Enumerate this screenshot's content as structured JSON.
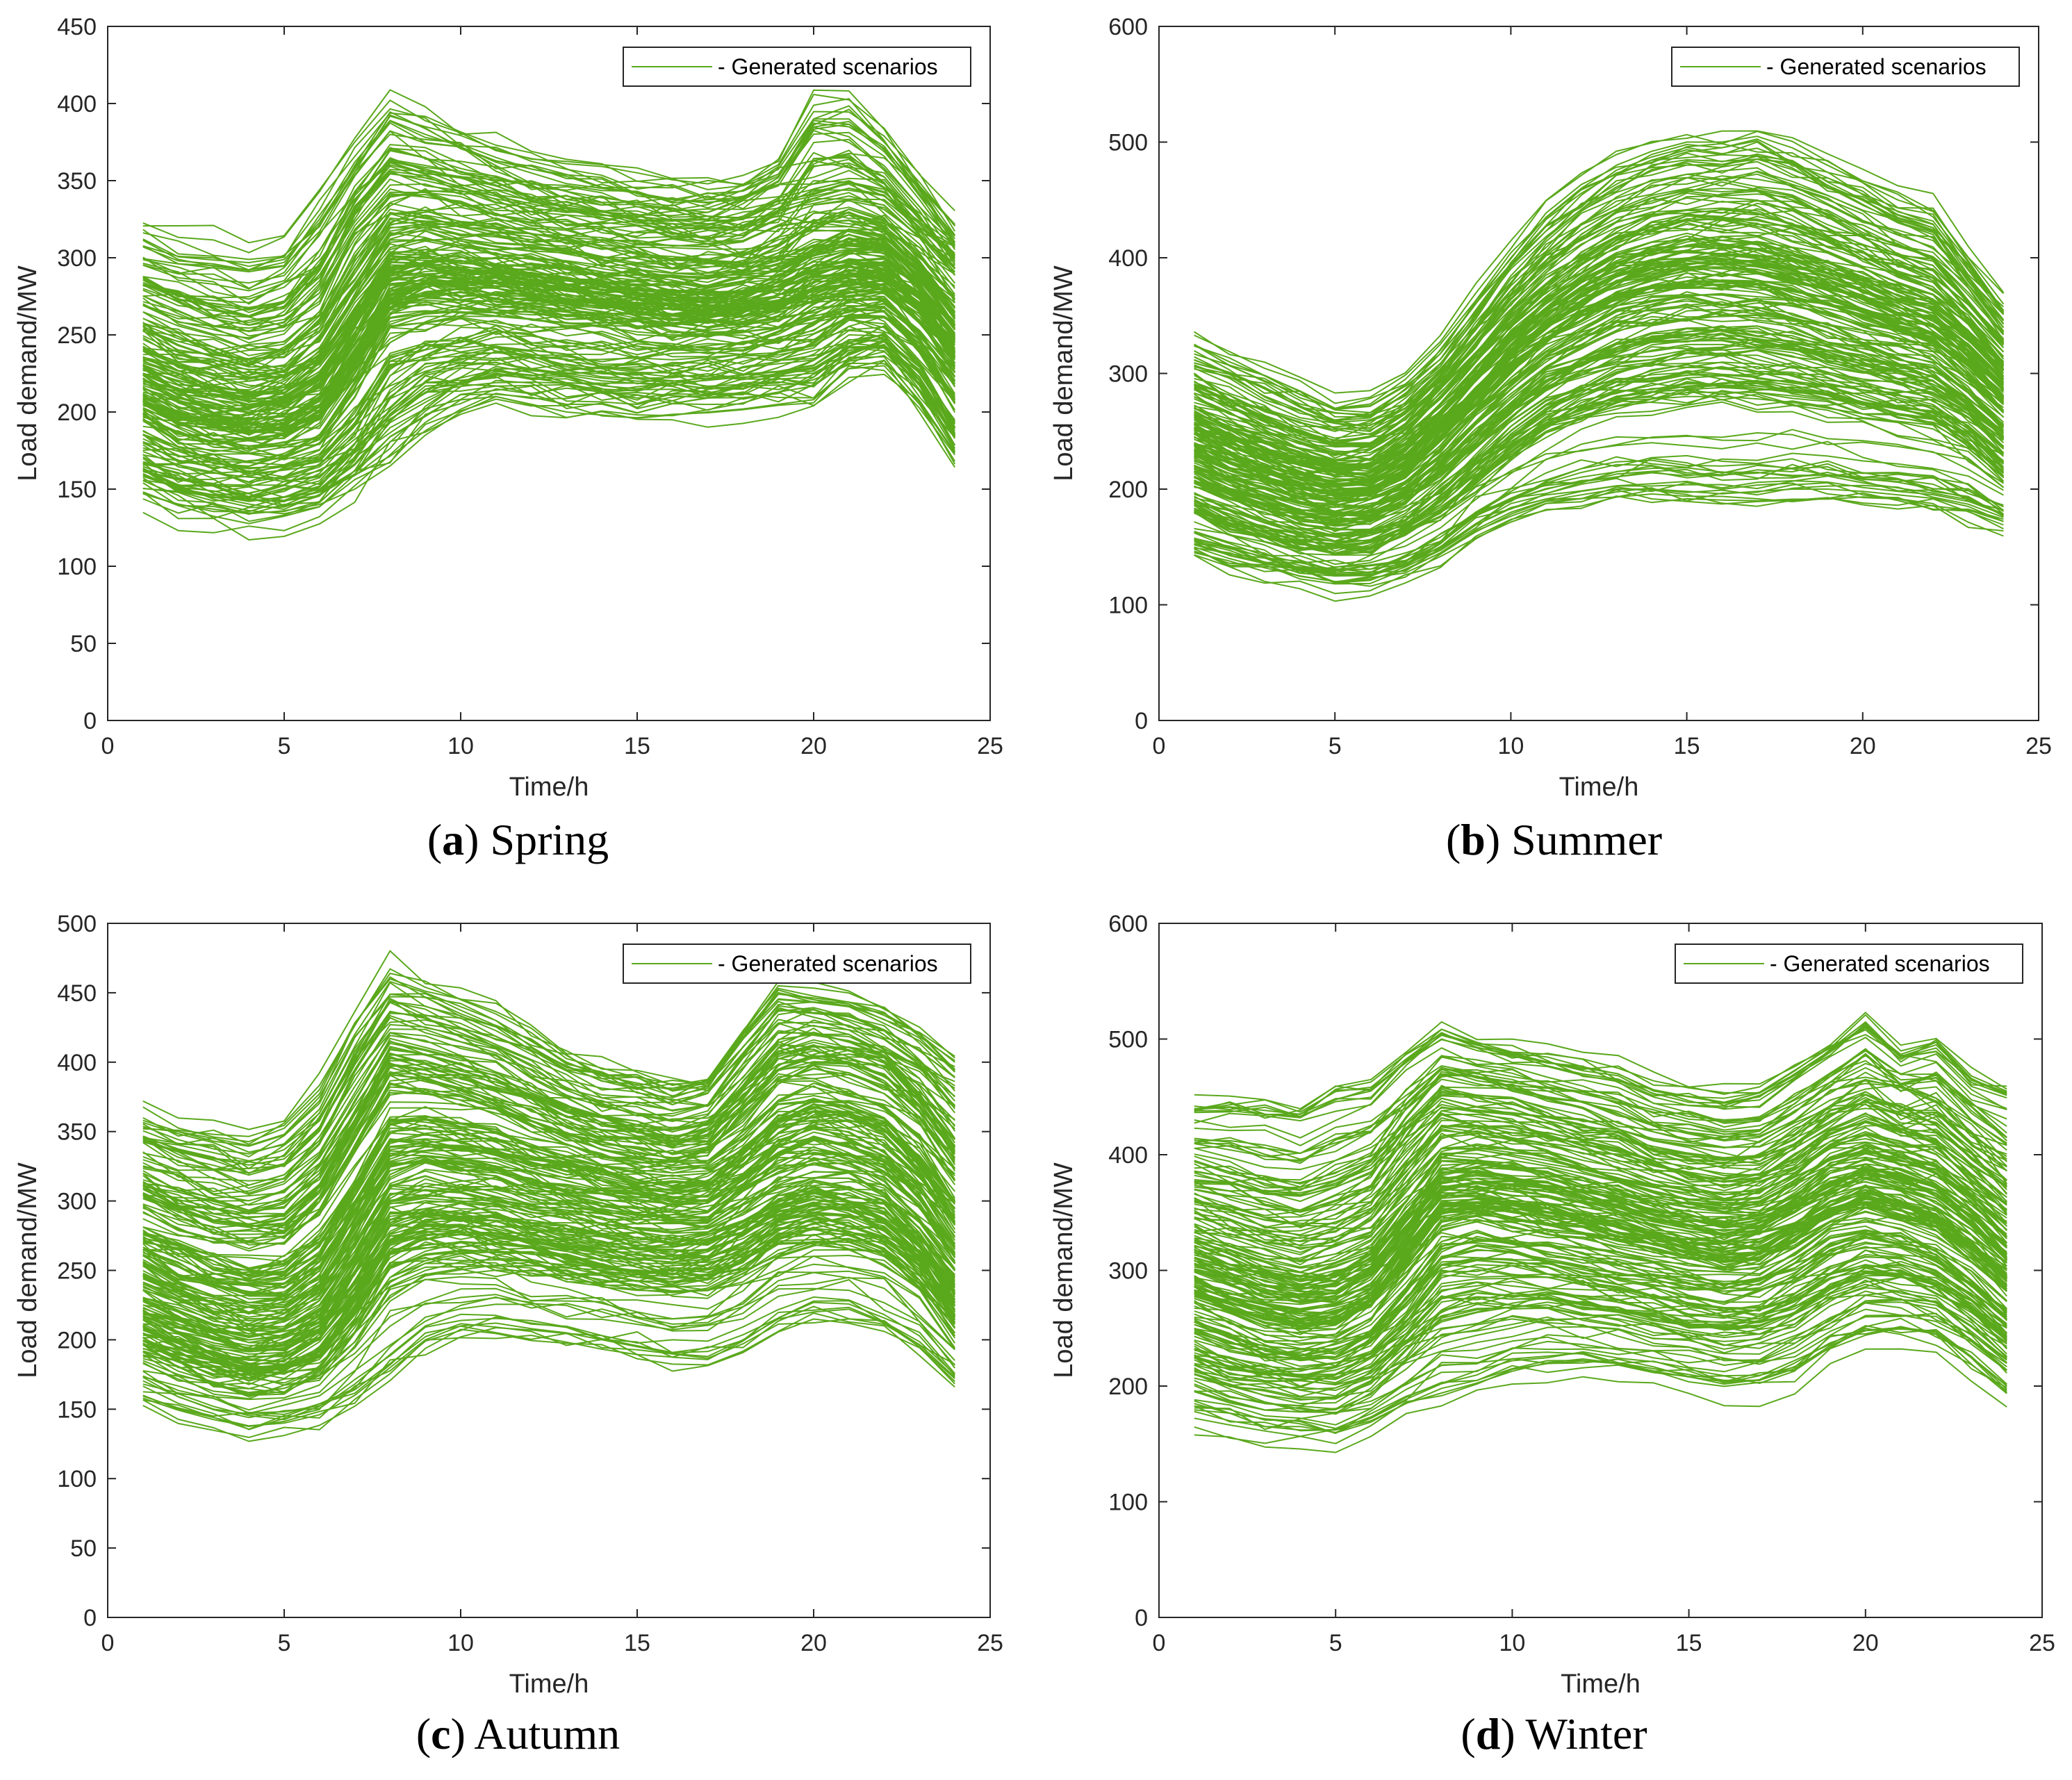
{
  "figure": {
    "line_color": "#5aa81c",
    "panels": [
      {
        "letter": "a",
        "season": "Spring"
      },
      {
        "letter": "b",
        "season": "Summer"
      },
      {
        "letter": "c",
        "season": "Autumn"
      },
      {
        "letter": "d",
        "season": "Winter"
      }
    ]
  },
  "chart_data": [
    {
      "type": "line",
      "xlabel": "Time/h",
      "ylabel": "Load demand/MW",
      "xlim": [
        0,
        25
      ],
      "ylim": [
        0,
        450
      ],
      "xticks": [
        0,
        5,
        10,
        15,
        20,
        25
      ],
      "yticks": [
        0,
        50,
        100,
        150,
        200,
        250,
        300,
        350,
        400,
        450
      ],
      "legend": {
        "label": "- Generated scenarios",
        "position": "top-right"
      },
      "x": [
        1,
        2,
        3,
        4,
        5,
        6,
        7,
        8,
        9,
        10,
        11,
        12,
        13,
        14,
        15,
        16,
        17,
        18,
        19,
        20,
        21,
        22,
        23,
        24
      ],
      "scenario_count": 200,
      "series": [
        {
          "values": [
            208,
            197,
            190,
            188,
            190,
            198,
            230,
            275,
            283,
            283,
            284,
            282,
            280,
            277,
            274,
            270,
            268,
            266,
            268,
            275,
            280,
            282,
            265,
            235
          ]
        },
        {
          "values": [
            307,
            298,
            296,
            292,
            297,
            325,
            362,
            389,
            380,
            372,
            362,
            355,
            348,
            345,
            342,
            338,
            336,
            338,
            352,
            390,
            390,
            370,
            340,
            310
          ]
        },
        {
          "values": [
            147,
            140,
            137,
            134,
            136,
            140,
            150,
            165,
            185,
            200,
            210,
            205,
            200,
            198,
            196,
            198,
            200,
            202,
            205,
            208,
            228,
            230,
            205,
            168
          ]
        },
        {
          "values": [
            280,
            272,
            262,
            258,
            263,
            285,
            330,
            355,
            350,
            345,
            340,
            335,
            330,
            328,
            325,
            322,
            322,
            325,
            335,
            340,
            345,
            340,
            320,
            300
          ]
        },
        {
          "values": [
            160,
            150,
            146,
            142,
            145,
            152,
            175,
            210,
            225,
            230,
            232,
            228,
            225,
            222,
            220,
            220,
            222,
            224,
            226,
            230,
            245,
            250,
            225,
            190
          ]
        },
        {
          "values": [
            240,
            230,
            224,
            222,
            226,
            242,
            275,
            310,
            312,
            308,
            305,
            300,
            298,
            295,
            292,
            290,
            290,
            292,
            298,
            310,
            315,
            310,
            290,
            260
          ]
        },
        {
          "values": [
            185,
            176,
            170,
            168,
            170,
            180,
            210,
            255,
            262,
            262,
            262,
            260,
            258,
            255,
            252,
            250,
            250,
            252,
            255,
            262,
            268,
            270,
            252,
            220
          ]
        },
        {
          "values": [
            225,
            215,
            208,
            205,
            208,
            222,
            255,
            292,
            295,
            292,
            290,
            288,
            285,
            282,
            280,
            278,
            276,
            278,
            285,
            298,
            305,
            300,
            282,
            250
          ]
        }
      ]
    },
    {
      "type": "line",
      "xlabel": "Time/h",
      "ylabel": "Load demand/MW",
      "xlim": [
        0,
        25
      ],
      "ylim": [
        0,
        600
      ],
      "xticks": [
        0,
        5,
        10,
        15,
        20,
        25
      ],
      "yticks": [
        0,
        100,
        200,
        300,
        400,
        500,
        600
      ],
      "legend": {
        "label": "- Generated scenarios",
        "position": "top-right"
      },
      "x": [
        1,
        2,
        3,
        4,
        5,
        6,
        7,
        8,
        9,
        10,
        11,
        12,
        13,
        14,
        15,
        16,
        17,
        18,
        19,
        20,
        21,
        22,
        23,
        24
      ],
      "scenario_count": 200,
      "series": [
        {
          "values": [
            235,
            222,
            210,
            200,
            195,
            198,
            215,
            245,
            275,
            305,
            330,
            350,
            365,
            375,
            380,
            380,
            378,
            372,
            365,
            355,
            345,
            335,
            310,
            280
          ]
        },
        {
          "values": [
            325,
            310,
            298,
            285,
            270,
            272,
            290,
            320,
            360,
            400,
            435,
            460,
            480,
            492,
            500,
            500,
            505,
            495,
            480,
            465,
            450,
            440,
            400,
            360
          ]
        },
        {
          "values": [
            150,
            140,
            132,
            125,
            120,
            122,
            130,
            145,
            165,
            180,
            190,
            195,
            200,
            200,
            198,
            196,
            198,
            200,
            200,
            198,
            195,
            192,
            185,
            172
          ]
        },
        {
          "values": [
            290,
            275,
            262,
            250,
            242,
            245,
            265,
            295,
            330,
            365,
            395,
            420,
            440,
            452,
            458,
            460,
            458,
            450,
            438,
            425,
            410,
            400,
            370,
            335
          ]
        },
        {
          "values": [
            180,
            168,
            158,
            150,
            145,
            148,
            160,
            180,
            205,
            230,
            250,
            262,
            272,
            278,
            280,
            280,
            278,
            275,
            270,
            265,
            258,
            252,
            235,
            210
          ]
        },
        {
          "values": [
            260,
            246,
            235,
            225,
            218,
            220,
            238,
            268,
            300,
            335,
            360,
            380,
            395,
            405,
            410,
            410,
            408,
            400,
            390,
            378,
            365,
            355,
            330,
            300
          ]
        },
        {
          "values": [
            205,
            192,
            182,
            174,
            168,
            170,
            184,
            208,
            235,
            262,
            285,
            300,
            312,
            320,
            325,
            325,
            322,
            318,
            310,
            302,
            295,
            288,
            268,
            240
          ]
        },
        {
          "values": [
            245,
            232,
            220,
            210,
            205,
            206,
            222,
            250,
            282,
            315,
            342,
            362,
            378,
            388,
            392,
            392,
            390,
            382,
            372,
            360,
            348,
            340,
            315,
            285
          ]
        }
      ]
    },
    {
      "type": "line",
      "xlabel": "Time/h",
      "ylabel": "Load demand/MW",
      "xlim": [
        0,
        25
      ],
      "ylim": [
        0,
        500
      ],
      "xticks": [
        0,
        5,
        10,
        15,
        20,
        25
      ],
      "yticks": [
        0,
        50,
        100,
        150,
        200,
        250,
        300,
        350,
        400,
        450,
        500
      ],
      "legend": {
        "label": "- Generated scenarios",
        "position": "top-right"
      },
      "x": [
        1,
        2,
        3,
        4,
        5,
        6,
        7,
        8,
        9,
        10,
        11,
        12,
        13,
        14,
        15,
        16,
        17,
        18,
        19,
        20,
        21,
        22,
        23,
        24
      ],
      "scenario_count": 200,
      "series": [
        {
          "values": [
            228,
            215,
            206,
            200,
            202,
            215,
            255,
            298,
            302,
            300,
            298,
            292,
            288,
            284,
            280,
            278,
            280,
            290,
            305,
            315,
            310,
            300,
            275,
            240
          ]
        },
        {
          "values": [
            358,
            350,
            345,
            340,
            348,
            375,
            420,
            458,
            450,
            440,
            430,
            415,
            400,
            390,
            385,
            380,
            385,
            420,
            450,
            445,
            440,
            435,
            420,
            400
          ]
        },
        {
          "values": [
            160,
            150,
            144,
            138,
            140,
            146,
            160,
            180,
            200,
            210,
            212,
            208,
            205,
            200,
            195,
            190,
            188,
            200,
            215,
            220,
            222,
            212,
            195,
            172
          ]
        },
        {
          "values": [
            320,
            308,
            298,
            292,
            296,
            320,
            365,
            410,
            405,
            398,
            390,
            378,
            368,
            360,
            355,
            350,
            355,
            380,
            410,
            420,
            415,
            405,
            380,
            345
          ]
        },
        {
          "values": [
            185,
            175,
            168,
            162,
            165,
            175,
            205,
            245,
            255,
            255,
            252,
            248,
            244,
            240,
            236,
            234,
            236,
            248,
            262,
            270,
            268,
            260,
            240,
            205
          ]
        },
        {
          "values": [
            270,
            258,
            248,
            242,
            246,
            262,
            305,
            350,
            352,
            348,
            344,
            336,
            330,
            325,
            320,
            318,
            320,
            338,
            358,
            368,
            362,
            352,
            328,
            290
          ]
        },
        {
          "values": [
            205,
            194,
            186,
            180,
            182,
            194,
            228,
            270,
            278,
            278,
            275,
            270,
            266,
            262,
            258,
            256,
            258,
            270,
            285,
            292,
            290,
            280,
            258,
            222
          ]
        },
        {
          "values": [
            248,
            236,
            226,
            220,
            224,
            240,
            282,
            325,
            330,
            326,
            322,
            315,
            310,
            305,
            300,
            298,
            300,
            315,
            335,
            345,
            340,
            330,
            305,
            265
          ]
        }
      ]
    },
    {
      "type": "line",
      "xlabel": "Time/h",
      "ylabel": "Load demand/MW",
      "xlim": [
        0,
        25
      ],
      "ylim": [
        0,
        600
      ],
      "xticks": [
        0,
        5,
        10,
        15,
        20,
        25
      ],
      "yticks": [
        0,
        100,
        200,
        300,
        400,
        500,
        600
      ],
      "legend": {
        "label": "- Generated scenarios",
        "position": "top-right"
      },
      "x": [
        1,
        2,
        3,
        4,
        5,
        6,
        7,
        8,
        9,
        10,
        11,
        12,
        13,
        14,
        15,
        16,
        17,
        18,
        19,
        20,
        21,
        22,
        23,
        24
      ],
      "scenario_count": 200,
      "series": [
        {
          "values": [
            280,
            268,
            258,
            252,
            255,
            270,
            310,
            350,
            355,
            350,
            345,
            338,
            330,
            322,
            315,
            310,
            315,
            330,
            350,
            358,
            352,
            340,
            318,
            290
          ]
        },
        {
          "values": [
            438,
            438,
            435,
            432,
            448,
            455,
            480,
            500,
            490,
            485,
            480,
            475,
            470,
            455,
            450,
            445,
            450,
            470,
            490,
            512,
            485,
            495,
            465,
            453
          ]
        },
        {
          "values": [
            178,
            170,
            165,
            162,
            162,
            170,
            185,
            198,
            205,
            215,
            222,
            222,
            220,
            215,
            210,
            205,
            205,
            215,
            235,
            248,
            250,
            245,
            225,
            200
          ]
        },
        {
          "values": [
            395,
            385,
            375,
            370,
            378,
            395,
            440,
            475,
            470,
            465,
            455,
            445,
            435,
            425,
            418,
            412,
            415,
            430,
            455,
            465,
            458,
            445,
            420,
            390
          ]
        },
        {
          "values": [
            210,
            200,
            192,
            188,
            190,
            202,
            232,
            265,
            272,
            270,
            268,
            262,
            258,
            252,
            246,
            242,
            245,
            258,
            275,
            285,
            282,
            272,
            252,
            225
          ]
        },
        {
          "values": [
            330,
            318,
            308,
            302,
            306,
            322,
            360,
            400,
            404,
            400,
            395,
            388,
            380,
            372,
            365,
            360,
            362,
            378,
            398,
            408,
            400,
            390,
            365,
            335
          ]
        },
        {
          "values": [
            250,
            238,
            228,
            222,
            225,
            240,
            275,
            312,
            318,
            315,
            310,
            304,
            298,
            292,
            286,
            282,
            285,
            298,
            318,
            328,
            322,
            310,
            288,
            260
          ]
        },
        {
          "values": [
            300,
            288,
            278,
            272,
            276,
            292,
            330,
            370,
            375,
            370,
            365,
            358,
            350,
            342,
            336,
            332,
            335,
            350,
            370,
            380,
            372,
            362,
            338,
            310
          ]
        }
      ]
    }
  ]
}
